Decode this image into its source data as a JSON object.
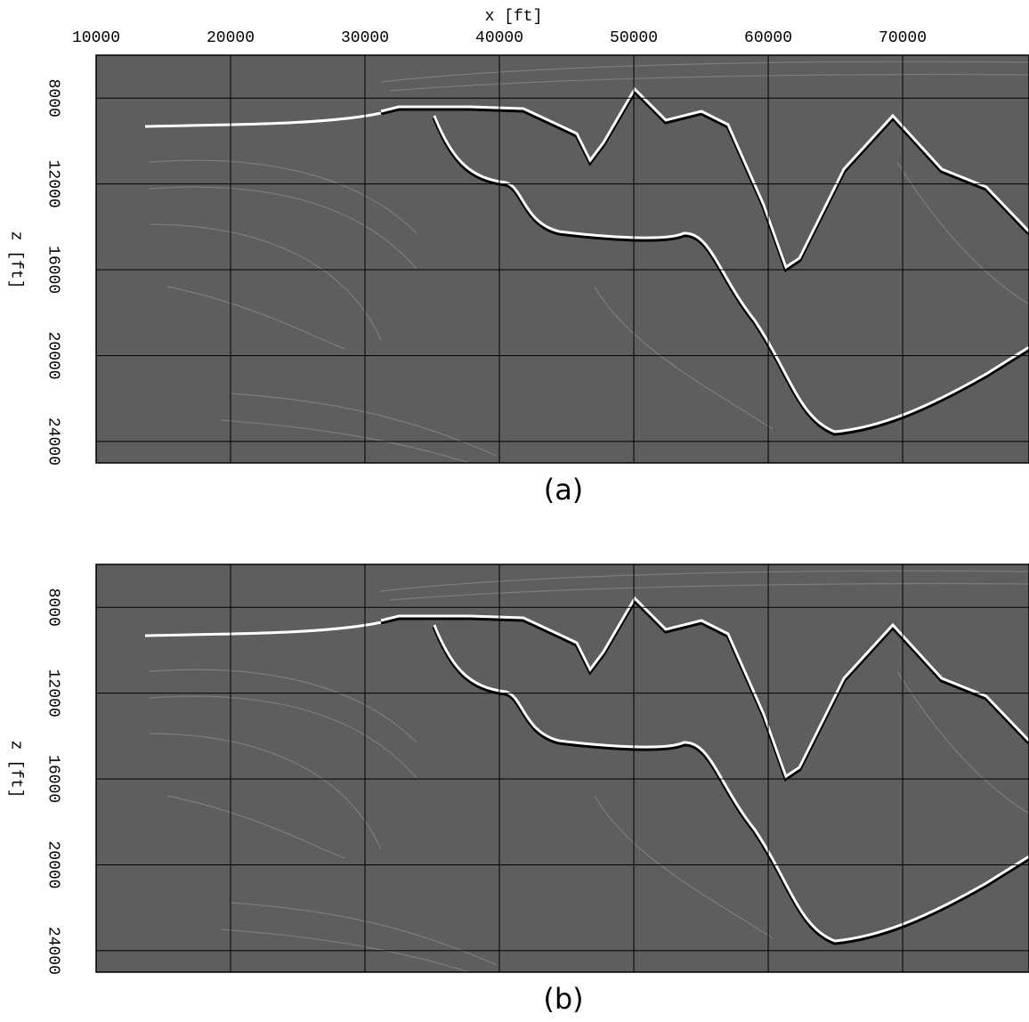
{
  "chart_data": [
    {
      "type": "image",
      "xlabel": "x [ft]",
      "ylabel": "z [ft]",
      "caption": "(a)",
      "xlim": [
        10000,
        79400
      ],
      "xticks": [
        10000,
        20000,
        30000,
        40000,
        50000,
        60000,
        70000
      ],
      "show_xtick_labels": true,
      "ylim": [
        25000,
        6000
      ],
      "yticks": [
        8000,
        12000,
        16000,
        20000,
        24000
      ],
      "grid": true
    },
    {
      "type": "image",
      "ylabel": "z [ft]",
      "caption": "(b)",
      "xlim": [
        10000,
        79400
      ],
      "xticks": [
        10000,
        20000,
        30000,
        40000,
        50000,
        60000,
        70000
      ],
      "show_xtick_labels": false,
      "ylim": [
        25000,
        6000
      ],
      "yticks": [
        8000,
        12000,
        16000,
        20000,
        24000
      ],
      "grid": true
    }
  ]
}
